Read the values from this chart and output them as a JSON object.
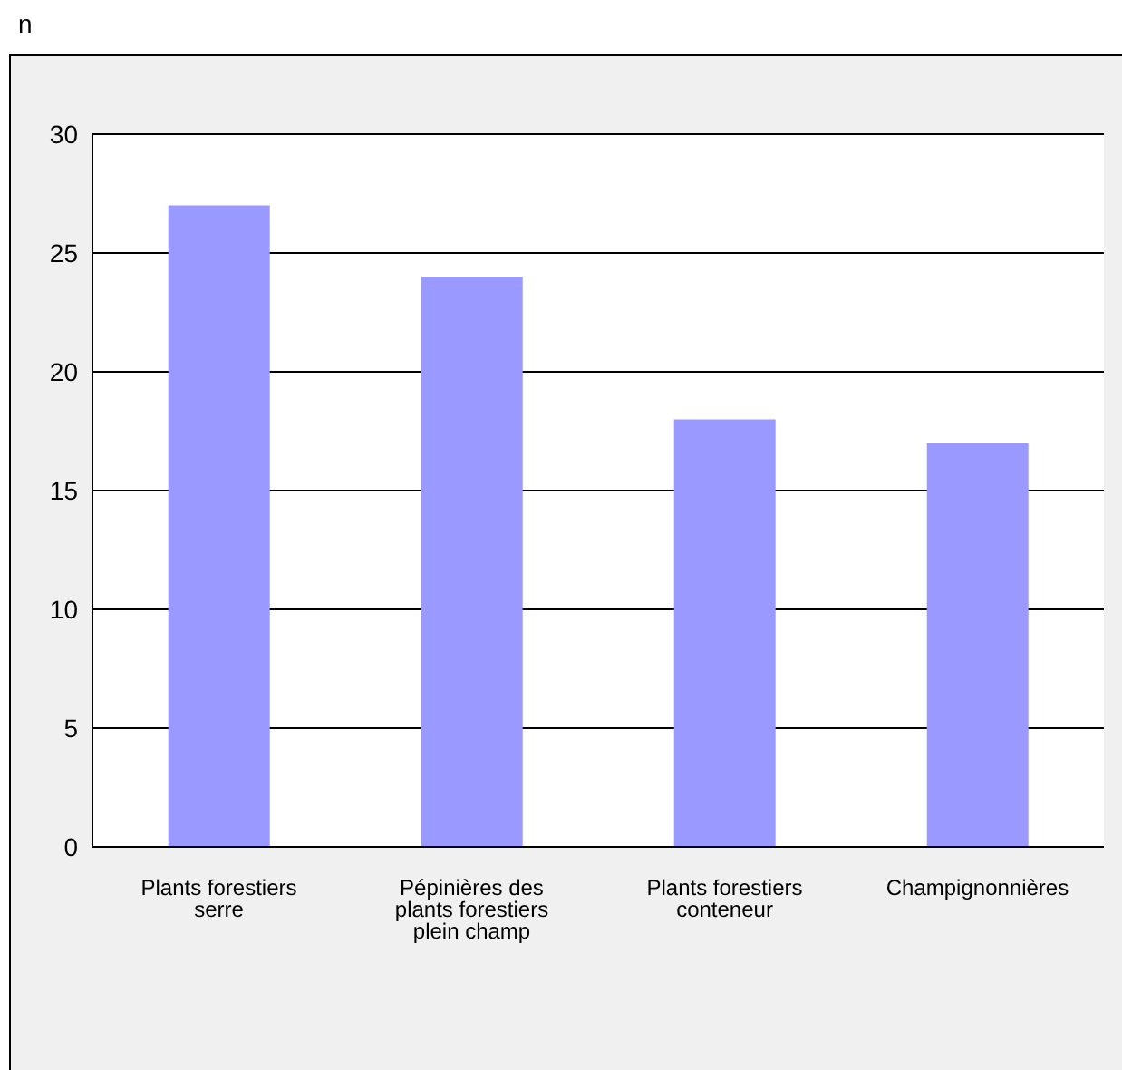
{
  "chart_data": {
    "type": "bar",
    "ylabel": "n",
    "categories": [
      "Plants forestiers serre",
      "Pépinières des plants forestiers plein champ",
      "Plants forestiers conteneur",
      "Champignonnières"
    ],
    "values": [
      27,
      24,
      18,
      17
    ],
    "color": "#9999ff",
    "ylim": [
      0,
      30
    ],
    "yticks": [
      0,
      5,
      10,
      15,
      20,
      25,
      30
    ],
    "grid": "y"
  }
}
